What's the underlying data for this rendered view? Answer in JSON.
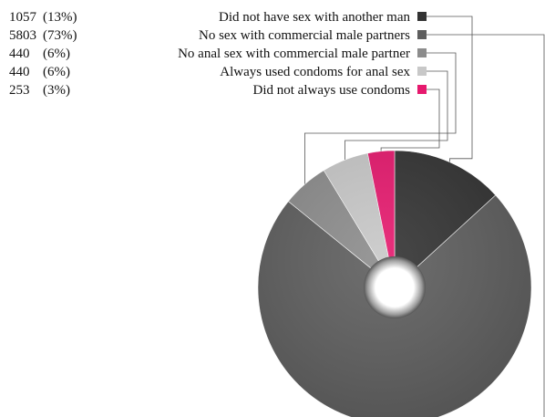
{
  "chart_data": {
    "type": "pie",
    "title": "",
    "variant": "donut",
    "slices": [
      {
        "label": "Did not have sex with another man",
        "value": 1057,
        "percent_label": "(13%)",
        "color": "#333333"
      },
      {
        "label": "No sex with commercial male partners",
        "value": 5803,
        "percent_label": "(73%)",
        "color": "#5e5e5e"
      },
      {
        "label": "No anal sex with commercial male partner",
        "value": 440,
        "percent_label": "(6%)",
        "color": "#8c8c8c"
      },
      {
        "label": "Always used condoms for anal sex",
        "value": 440,
        "percent_label": "(6%)",
        "color": "#c8c8c8"
      },
      {
        "label": "Did not always use condoms",
        "value": 253,
        "percent_label": "(3%)",
        "color": "#e6196e"
      }
    ]
  }
}
